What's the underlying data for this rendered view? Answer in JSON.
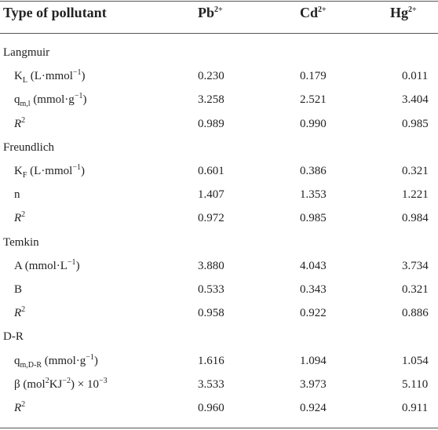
{
  "table": {
    "header": [
      [
        {
          "text": "Type of pollutant"
        }
      ],
      [
        {
          "text": "Pb"
        },
        {
          "sup": "2+"
        }
      ],
      [
        {
          "text": "Cd"
        },
        {
          "sup": "2+"
        }
      ],
      [
        {
          "text": "Hg"
        },
        {
          "sup": "2+"
        }
      ]
    ],
    "groups": [
      {
        "name": "Langmuir",
        "rows": [
          {
            "label": [
              {
                "text": "K"
              },
              {
                "sub": "L"
              },
              {
                "text": " (L·mmol"
              },
              {
                "sup": "−1"
              },
              {
                "text": ")"
              }
            ],
            "values": [
              "0.230",
              "0.179",
              "0.011"
            ]
          },
          {
            "label": [
              {
                "text": "q"
              },
              {
                "sub": "m,l"
              },
              {
                "text": " (mmol·g"
              },
              {
                "sup": "−1"
              },
              {
                "text": ")"
              }
            ],
            "values": [
              "3.258",
              "2.521",
              "3.404"
            ]
          },
          {
            "label": [
              {
                "italic": "R"
              },
              {
                "sup": "2"
              }
            ],
            "values": [
              "0.989",
              "0.990",
              "0.985"
            ]
          }
        ]
      },
      {
        "name": "Freundlich",
        "rows": [
          {
            "label": [
              {
                "text": "K"
              },
              {
                "sub": "F"
              },
              {
                "text": " (L·mmol"
              },
              {
                "sup": "−1"
              },
              {
                "text": ")"
              }
            ],
            "values": [
              "0.601",
              "0.386",
              "0.321"
            ]
          },
          {
            "label": [
              {
                "text": "n"
              }
            ],
            "values": [
              "1.407",
              "1.353",
              "1.221"
            ]
          },
          {
            "label": [
              {
                "italic": "R"
              },
              {
                "sup": "2"
              }
            ],
            "values": [
              "0.972",
              "0.985",
              "0.984"
            ]
          }
        ]
      },
      {
        "name": "Temkin",
        "rows": [
          {
            "label": [
              {
                "text": "A (mmol·L"
              },
              {
                "sup": "−1"
              },
              {
                "text": ")"
              }
            ],
            "values": [
              "3.880",
              "4.043",
              "3.734"
            ]
          },
          {
            "label": [
              {
                "text": "B"
              }
            ],
            "values": [
              "0.533",
              "0.343",
              "0.321"
            ]
          },
          {
            "label": [
              {
                "italic": "R"
              },
              {
                "sup": "2"
              }
            ],
            "values": [
              "0.958",
              "0.922",
              "0.886"
            ]
          }
        ]
      },
      {
        "name": "D-R",
        "rows": [
          {
            "label": [
              {
                "text": "q"
              },
              {
                "sub": "m,D-R"
              },
              {
                "text": " (mmol·g"
              },
              {
                "sup": "−1"
              },
              {
                "text": ")"
              }
            ],
            "values": [
              "1.616",
              "1.094",
              "1.054"
            ]
          },
          {
            "label": [
              {
                "text": "β (mol"
              },
              {
                "sup": "2"
              },
              {
                "text": "KJ"
              },
              {
                "sup": "−2"
              },
              {
                "text": ") × 10"
              },
              {
                "sup": "−3"
              }
            ],
            "values": [
              "3.533",
              "3.973",
              "5.110"
            ]
          },
          {
            "label": [
              {
                "italic": "R"
              },
              {
                "sup": "2"
              }
            ],
            "values": [
              "0.960",
              "0.924",
              "0.911"
            ]
          }
        ]
      }
    ]
  }
}
